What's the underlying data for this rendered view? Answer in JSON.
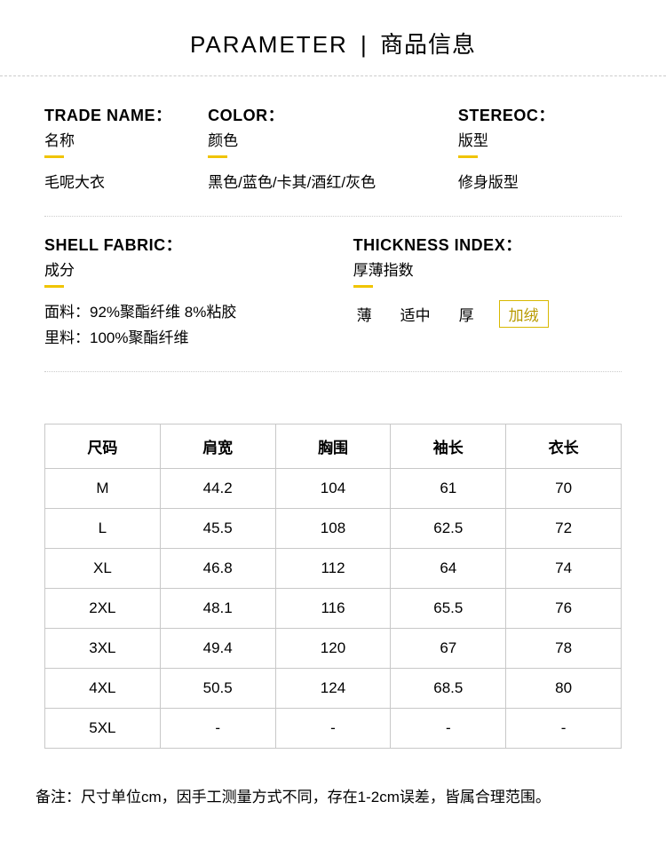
{
  "title": {
    "en": "PARAMETER",
    "divider": "|",
    "zh": "商品信息"
  },
  "info": {
    "tradeName": {
      "labelEn": "TRADE NAME：",
      "labelZh": "名称",
      "value": "毛呢大衣"
    },
    "color": {
      "labelEn": "COLOR：",
      "labelZh": "颜色",
      "value": "黑色/蓝色/卡其/酒红/灰色"
    },
    "stereoc": {
      "labelEn": "STEREOC：",
      "labelZh": "版型",
      "value": "修身版型"
    },
    "fabric": {
      "labelEn": "SHELL FABRIC：",
      "labelZh": "成分",
      "line1": "面料：92%聚酯纤维 8%粘胶",
      "line2": "里料：100%聚酯纤维"
    },
    "thickness": {
      "labelEn": "THICKNESS INDEX：",
      "labelZh": "厚薄指数",
      "options": [
        "薄",
        "适中",
        "厚",
        "加绒"
      ],
      "selectedIndex": 3
    }
  },
  "sizeTable": {
    "headers": [
      "尺码",
      "肩宽",
      "胸围",
      "袖长",
      "衣长"
    ],
    "rows": [
      [
        "M",
        "44.2",
        "104",
        "61",
        "70"
      ],
      [
        "L",
        "45.5",
        "108",
        "62.5",
        "72"
      ],
      [
        "XL",
        "46.8",
        "112",
        "64",
        "74"
      ],
      [
        "2XL",
        "48.1",
        "116",
        "65.5",
        "76"
      ],
      [
        "3XL",
        "49.4",
        "120",
        "67",
        "78"
      ],
      [
        "4XL",
        "50.5",
        "124",
        "68.5",
        "80"
      ],
      [
        "5XL",
        "-",
        "-",
        "-",
        "-"
      ]
    ]
  },
  "footnote": "备注：尺寸单位cm，因手工测量方式不同，存在1-2cm误差，皆属合理范围。",
  "colors": {
    "accent": "#f0c400",
    "selectedBorder": "#d8b800",
    "selectedText": "#b89a00",
    "tableBorder": "#c8c8c8",
    "dash": "#cccccc"
  }
}
